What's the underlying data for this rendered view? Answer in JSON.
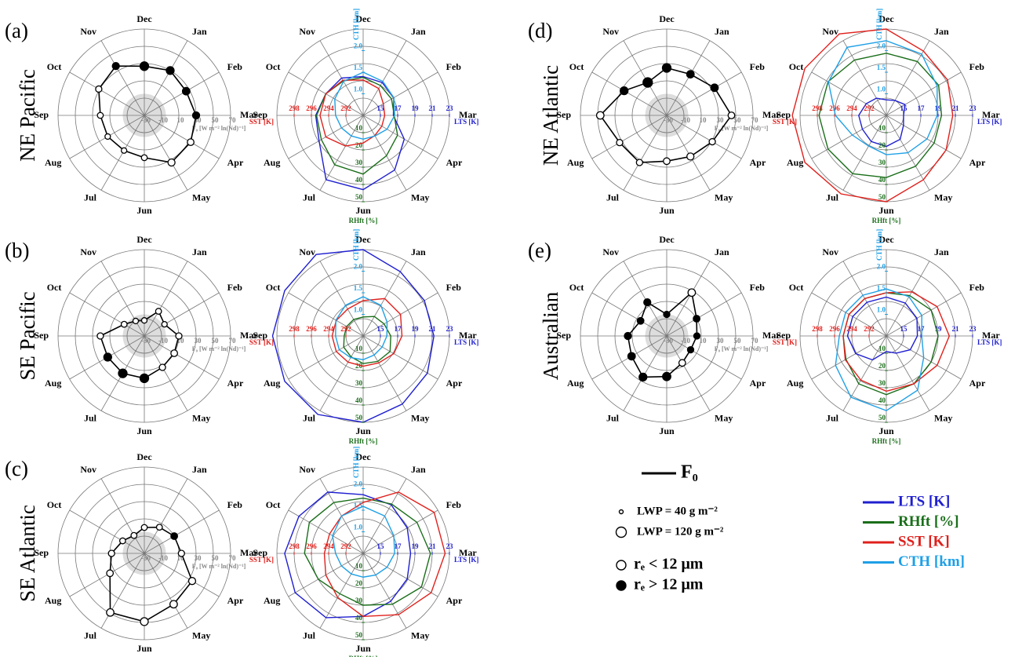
{
  "chart_data": [
    {
      "type": "radar",
      "panel": "(a)",
      "region": "NE Pacific",
      "categories": [
        "Dec",
        "Jan",
        "Feb",
        "Mar",
        "Apr",
        "May",
        "Jun",
        "Jul",
        "Aug",
        "Sep",
        "Oct",
        "Nov"
      ],
      "values": [
        27,
        30,
        26,
        30,
        32,
        33,
        19,
        17,
        19,
        21,
        31,
        36
      ],
      "lwp": [
        100,
        90,
        85,
        80,
        75,
        80,
        65,
        60,
        60,
        65,
        70,
        80
      ],
      "re_large": [
        true,
        true,
        true,
        true,
        false,
        false,
        false,
        false,
        false,
        false,
        false,
        true
      ],
      "rlim": [
        -30,
        70
      ],
      "rticks": [
        -30,
        -10,
        10,
        30,
        50,
        70
      ],
      "shaded_range": [
        -30,
        -5
      ],
      "raxis_label": "F₀ [W m⁻² ln(Nd)⁻¹]",
      "color": "#000000"
    },
    {
      "type": "radar_multi",
      "categories": [
        "Dec",
        "Jan",
        "Feb",
        "Mar",
        "Apr",
        "May",
        "Jun",
        "Jul",
        "Aug",
        "Sep",
        "Oct",
        "Nov"
      ],
      "series": [
        {
          "name": "LTS [K]",
          "color": "#1f1fd0",
          "axis_direction": "Mar",
          "rlim": [
            13,
            23
          ],
          "rticks": [
            15,
            17,
            19,
            21,
            23
          ],
          "values": [
            17.5,
            17.4,
            17.1,
            16.5,
            18.5,
            20.3,
            21.6,
            21.6,
            18.9,
            18.5,
            18.0,
            18.0
          ]
        },
        {
          "name": "RHft [%]",
          "color": "#1a6e1a",
          "axis_direction": "Jun",
          "rlim": [
            0,
            50
          ],
          "rticks": [
            10,
            20,
            30,
            40,
            50
          ],
          "values": [
            22,
            20,
            19,
            18,
            23,
            27,
            34,
            33,
            28,
            27,
            25,
            23
          ]
        },
        {
          "name": "SST [K]",
          "color": "#e0201c",
          "axis_direction": "Sep",
          "rlim": [
            290,
            300
          ],
          "rticks": [
            292,
            294,
            296,
            298
          ],
          "values": [
            294.1,
            293.6,
            292.7,
            292.5,
            292.5,
            292.7,
            293.2,
            294.1,
            295.0,
            295.0,
            295.0,
            294.7
          ]
        },
        {
          "name": "CTH [km]",
          "color": "#1ea0e6",
          "axis_direction": "Dec",
          "rlim": [
            0.5,
            2.5
          ],
          "rticks": [
            {
              "value": 1,
              "label": "1.0"
            },
            1.5,
            {
              "value": 2,
              "label": "2.0"
            }
          ],
          "values": [
            1.5,
            1.41,
            1.32,
            1.23,
            1.14,
            1.05,
            1.05,
            1.05,
            1.08,
            1.14,
            1.26,
            1.41
          ]
        }
      ]
    },
    {
      "type": "radar",
      "panel": "(b)",
      "region": "SE Pacific",
      "categories": [
        "Dec",
        "Jan",
        "Feb",
        "Mar",
        "Apr",
        "May",
        "Jun",
        "Jul",
        "Aug",
        "Sep",
        "Oct",
        "Nov"
      ],
      "values": [
        -12,
        3,
        -3,
        10,
        10,
        12,
        19,
        20,
        19,
        21,
        -3,
        -10
      ],
      "lwp": [
        60,
        65,
        60,
        70,
        75,
        70,
        100,
        100,
        90,
        70,
        65,
        60
      ],
      "re_large": [
        false,
        false,
        false,
        false,
        false,
        false,
        true,
        true,
        true,
        false,
        false,
        false
      ],
      "rlim": [
        -30,
        70
      ],
      "rticks": [
        -30,
        -10,
        10,
        30,
        50,
        70
      ],
      "shaded_range": [
        -30,
        -5
      ],
      "raxis_label": "F₀ [W m⁻² ln(Nd)⁻¹]",
      "color": "#000000"
    },
    {
      "type": "radar_multi",
      "categories": [
        "Dec",
        "Jan",
        "Feb",
        "Mar",
        "Apr",
        "May",
        "Jun",
        "Jul",
        "Aug",
        "Sep",
        "Oct",
        "Nov"
      ],
      "series": [
        {
          "name": "LTS [K]",
          "color": "#1f1fd0",
          "axis_direction": "Mar",
          "rlim": [
            13,
            23
          ],
          "rticks": [
            15,
            17,
            19,
            21,
            23
          ],
          "values": [
            23,
            21.6,
            21.2,
            21.2,
            21.6,
            22.1,
            23,
            23.5,
            23.5,
            23.5,
            23.5,
            23.9
          ]
        },
        {
          "name": "RHft [%]",
          "color": "#1a6e1a",
          "axis_direction": "Jun",
          "rlim": [
            0,
            50
          ],
          "rticks": [
            10,
            20,
            30,
            40,
            50
          ],
          "values": [
            11,
            13,
            14,
            16,
            18,
            17,
            16,
            14,
            13,
            11,
            11,
            11
          ]
        },
        {
          "name": "SST [K]",
          "color": "#e0201c",
          "axis_direction": "Sep",
          "rlim": [
            290,
            300
          ],
          "rticks": [
            292,
            294,
            296,
            298
          ],
          "values": [
            294.1,
            295,
            295,
            294.5,
            294.1,
            293.6,
            293.5,
            293.5,
            293.6,
            293.6,
            293.6,
            293.6
          ]
        },
        {
          "name": "CTH [km]",
          "color": "#1ea0e6",
          "axis_direction": "Dec",
          "rlim": [
            0.5,
            2.5
          ],
          "rticks": [
            {
              "value": 1,
              "label": "1.0"
            },
            1.5,
            {
              "value": 2,
              "label": "2.0"
            }
          ],
          "values": [
            1.41,
            1.32,
            1.14,
            1.05,
            1.01,
            1.01,
            1.05,
            1.08,
            1.14,
            1.14,
            1.23,
            1.32
          ]
        }
      ]
    },
    {
      "type": "radar",
      "panel": "(c)",
      "region": "SE Atlantic",
      "categories": [
        "Dec",
        "Jan",
        "Feb",
        "Mar",
        "Apr",
        "May",
        "Jun",
        "Jul",
        "Aug",
        "Sep",
        "Oct",
        "Nov"
      ],
      "values": [
        0,
        5,
        10,
        13,
        34,
        38,
        49,
        49,
        16,
        8,
        -1,
        -6
      ],
      "lwp": [
        65,
        65,
        75,
        70,
        80,
        85,
        90,
        85,
        75,
        70,
        65,
        65
      ],
      "re_large": [
        false,
        false,
        true,
        false,
        false,
        false,
        false,
        false,
        false,
        false,
        false,
        false
      ],
      "rlim": [
        -30,
        70
      ],
      "rticks": [
        -30,
        -10,
        10,
        30,
        50,
        70
      ],
      "shaded_range": [
        -30,
        -5
      ],
      "raxis_label": "F₀ [W m⁻² ln(Nd)⁻¹]",
      "color": "#000000"
    },
    {
      "type": "radar_multi",
      "categories": [
        "Dec",
        "Jan",
        "Feb",
        "Mar",
        "Apr",
        "May",
        "Jun",
        "Jul",
        "Aug",
        "Sep",
        "Oct",
        "Nov"
      ],
      "series": [
        {
          "name": "LTS [K]",
          "color": "#1f1fd0",
          "axis_direction": "Mar",
          "rlim": [
            13,
            23
          ],
          "rticks": [
            15,
            17,
            19,
            21,
            23
          ],
          "values": [
            19.8,
            19.5,
            18.9,
            18.5,
            18.9,
            19.4,
            20.3,
            21.6,
            22.1,
            22.1,
            21.6,
            21.2
          ]
        },
        {
          "name": "RHft [%]",
          "color": "#1a6e1a",
          "axis_direction": "Jun",
          "rlim": [
            0,
            50
          ],
          "rticks": [
            10,
            20,
            30,
            40,
            50
          ],
          "values": [
            32,
            33,
            36,
            39,
            39,
            34,
            30,
            27,
            30,
            34,
            36,
            34
          ]
        },
        {
          "name": "SST [K]",
          "color": "#e0201c",
          "axis_direction": "Sep",
          "rlim": [
            290,
            300
          ],
          "rticks": [
            292,
            294,
            296,
            298
          ],
          "values": [
            295.9,
            298.2,
            299.5,
            299.5,
            299.1,
            298.2,
            297.3,
            295.9,
            295,
            294.5,
            294.5,
            295
          ]
        },
        {
          "name": "CTH [km]",
          "color": "#1ea0e6",
          "axis_direction": "Dec",
          "rlim": [
            0.5,
            2.5
          ],
          "rticks": [
            {
              "value": 1,
              "label": "1.0"
            },
            1.5,
            {
              "value": 2,
              "label": "2.0"
            }
          ],
          "values": [
            1.59,
            1.5,
            1.32,
            1.23,
            1.14,
            1.08,
            1.05,
            1.05,
            1.08,
            1.14,
            1.32,
            1.5
          ]
        }
      ]
    },
    {
      "type": "radar",
      "panel": "(d)",
      "region": "NE Atlantic",
      "categories": [
        "Dec",
        "Jan",
        "Feb",
        "Mar",
        "Apr",
        "May",
        "Jun",
        "Jul",
        "Aug",
        "Sep",
        "Oct",
        "Nov"
      ],
      "values": [
        25,
        25,
        34,
        45,
        31,
        25,
        23,
        33,
        33,
        47,
        27,
        14
      ],
      "lwp": [
        100,
        85,
        85,
        75,
        70,
        80,
        75,
        70,
        70,
        85,
        90,
        110
      ],
      "re_large": [
        true,
        true,
        true,
        false,
        false,
        false,
        false,
        false,
        false,
        false,
        true,
        true
      ],
      "rlim": [
        -30,
        70
      ],
      "rticks": [
        -30,
        -10,
        10,
        30,
        50,
        70
      ],
      "shaded_range": [
        -30,
        -5
      ],
      "raxis_label": "F₀ [W m⁻² ln(Nd)⁻¹]",
      "color": "#000000"
    },
    {
      "type": "radar_multi",
      "categories": [
        "Dec",
        "Jan",
        "Feb",
        "Mar",
        "Apr",
        "May",
        "Jun",
        "Jul",
        "Aug",
        "Sep",
        "Oct",
        "Nov"
      ],
      "series": [
        {
          "name": "LTS [K]",
          "color": "#1f1fd0",
          "axis_direction": "Mar",
          "rlim": [
            13,
            23
          ],
          "rticks": [
            15,
            17,
            19,
            21,
            23
          ],
          "values": [
            14.8,
            15,
            15.5,
            15,
            15.3,
            16.2,
            16.6,
            16.5,
            16.2,
            16.2,
            15.7,
            15.3
          ]
        },
        {
          "name": "RHft [%]",
          "color": "#1a6e1a",
          "axis_direction": "Jun",
          "rlim": [
            0,
            50
          ],
          "rticks": [
            10,
            20,
            30,
            40,
            50
          ],
          "values": [
            36,
            36,
            35,
            32,
            32,
            34,
            36,
            39,
            39,
            39,
            39,
            37
          ]
        },
        {
          "name": "SST [K]",
          "color": "#e0201c",
          "axis_direction": "Sep",
          "rlim": [
            290,
            300
          ],
          "rticks": [
            292,
            294,
            296,
            298
          ],
          "values": [
            300,
            298.6,
            298.2,
            297.7,
            298,
            298.6,
            300,
            300.5,
            300.9,
            300.9,
            300.9,
            300.9
          ]
        },
        {
          "name": "CTH [km]",
          "color": "#1ea0e6",
          "axis_direction": "Dec",
          "rlim": [
            0.5,
            2.5
          ],
          "rticks": [
            {
              "value": 1,
              "label": "1.0"
            },
            1.5,
            {
              "value": 2,
              "label": "2.0"
            }
          ],
          "values": [
            2.23,
            2.14,
            1.86,
            1.68,
            1.59,
            1.5,
            1.41,
            1.32,
            1.41,
            1.68,
            2.05,
            2.32
          ]
        }
      ]
    },
    {
      "type": "radar",
      "panel": "(e)",
      "region": "Australian",
      "categories": [
        "Dec",
        "Jan",
        "Feb",
        "Mar",
        "Apr",
        "May",
        "Jun",
        "Jul",
        "Aug",
        "Sep",
        "Oct",
        "Nov"
      ],
      "values": [
        -5,
        28,
        10,
        5,
        2,
        6,
        17,
        25,
        17,
        15,
        5,
        15
      ],
      "lwp": [
        70,
        85,
        75,
        70,
        70,
        75,
        95,
        90,
        85,
        80,
        75,
        80
      ],
      "re_large": [
        true,
        false,
        true,
        true,
        true,
        false,
        true,
        true,
        true,
        true,
        true,
        true
      ],
      "rlim": [
        -30,
        70
      ],
      "rticks": [
        -30,
        -10,
        10,
        30,
        50,
        70
      ],
      "shaded_range": [
        -30,
        -5
      ],
      "raxis_label": "F₀ [W m⁻² ln(Nd)⁻¹]",
      "color": "#000000"
    },
    {
      "type": "radar_multi",
      "categories": [
        "Dec",
        "Jan",
        "Feb",
        "Mar",
        "Apr",
        "May",
        "Jun",
        "Jul",
        "Aug",
        "Sep",
        "Oct",
        "Nov"
      ],
      "series": [
        {
          "name": "LTS [K]",
          "color": "#1f1fd0",
          "axis_direction": "Mar",
          "rlim": [
            13,
            23
          ],
          "rticks": [
            15,
            17,
            19,
            21,
            23
          ],
          "values": [
            17.5,
            17.4,
            17.1,
            16.6,
            16.2,
            15.3,
            14.8,
            16.2,
            17.1,
            17.5,
            17.5,
            17.5
          ]
        },
        {
          "name": "RHft [%]",
          "color": "#1a6e1a",
          "axis_direction": "Jun",
          "rlim": [
            0,
            50
          ],
          "rticks": [
            10,
            20,
            30,
            40,
            50
          ],
          "values": [
            25,
            27,
            30,
            30,
            30,
            32,
            34,
            32,
            27,
            25,
            25,
            25
          ]
        },
        {
          "name": "SST [K]",
          "color": "#e0201c",
          "axis_direction": "Sep",
          "rlim": [
            290,
            300
          ],
          "rticks": [
            292,
            294,
            296,
            298
          ],
          "values": [
            295,
            295.9,
            296.8,
            297.3,
            296.8,
            296.4,
            296.4,
            295.9,
            295.5,
            295,
            295,
            295
          ]
        },
        {
          "name": "CTH [km]",
          "color": "#1ea0e6",
          "axis_direction": "Dec",
          "rlim": [
            0.5,
            2.5
          ],
          "rticks": [
            {
              "value": 1,
              "label": "1.0"
            },
            1.5,
            {
              "value": 2,
              "label": "2.0"
            }
          ],
          "values": [
            1.59,
            1.55,
            1.45,
            1.32,
            1.5,
            1.95,
            2.23,
            2.14,
            1.86,
            1.59,
            1.59,
            1.59
          ]
        }
      ]
    }
  ],
  "legend": {
    "f0": "F₀",
    "lwp": [
      {
        "label": "LWP = 40 g m⁻²",
        "value": 40
      },
      {
        "label": "LWP = 120 g m⁻²",
        "value": 120
      }
    ],
    "re": [
      {
        "label": "rₑ < 12 μm",
        "filled": false
      },
      {
        "label": "rₑ > 12 μm",
        "filled": true
      }
    ]
  }
}
